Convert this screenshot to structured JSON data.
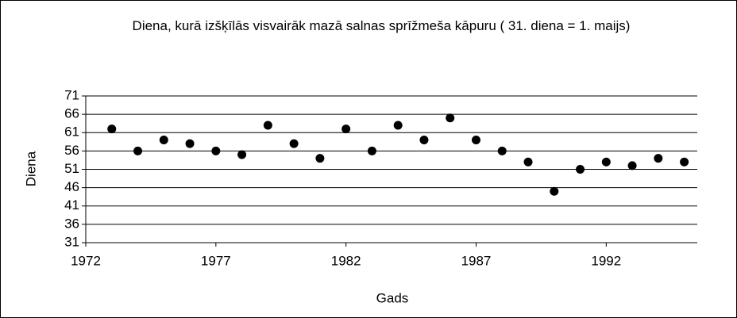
{
  "chart_data": {
    "type": "scatter",
    "title": "Diena, kurā izšķīlās visvairāk mazā salnas sprīžmeša kāpuru ( 31. diena = 1. maijs)",
    "x_label": "Gads",
    "y_label": "Diena",
    "x": [
      1973,
      1974,
      1975,
      1976,
      1977,
      1978,
      1979,
      1980,
      1981,
      1982,
      1983,
      1984,
      1985,
      1986,
      1987,
      1988,
      1989,
      1990,
      1991,
      1992,
      1993,
      1994,
      1995
    ],
    "series": [
      {
        "name": "Diena",
        "color": "#000000",
        "values": [
          62,
          56,
          59,
          58,
          56,
          55,
          63,
          58,
          54,
          62,
          56,
          63,
          59,
          65,
          59,
          56,
          53,
          45,
          51,
          53,
          52,
          54,
          53
        ]
      }
    ],
    "xlim": [
      1972,
      1995.5
    ],
    "xticks": [
      1972,
      1977,
      1982,
      1987,
      1992
    ],
    "ylim": [
      31,
      71
    ],
    "yticks": [
      31,
      36,
      41,
      46,
      51,
      56,
      61,
      66,
      71
    ],
    "grid": true
  }
}
